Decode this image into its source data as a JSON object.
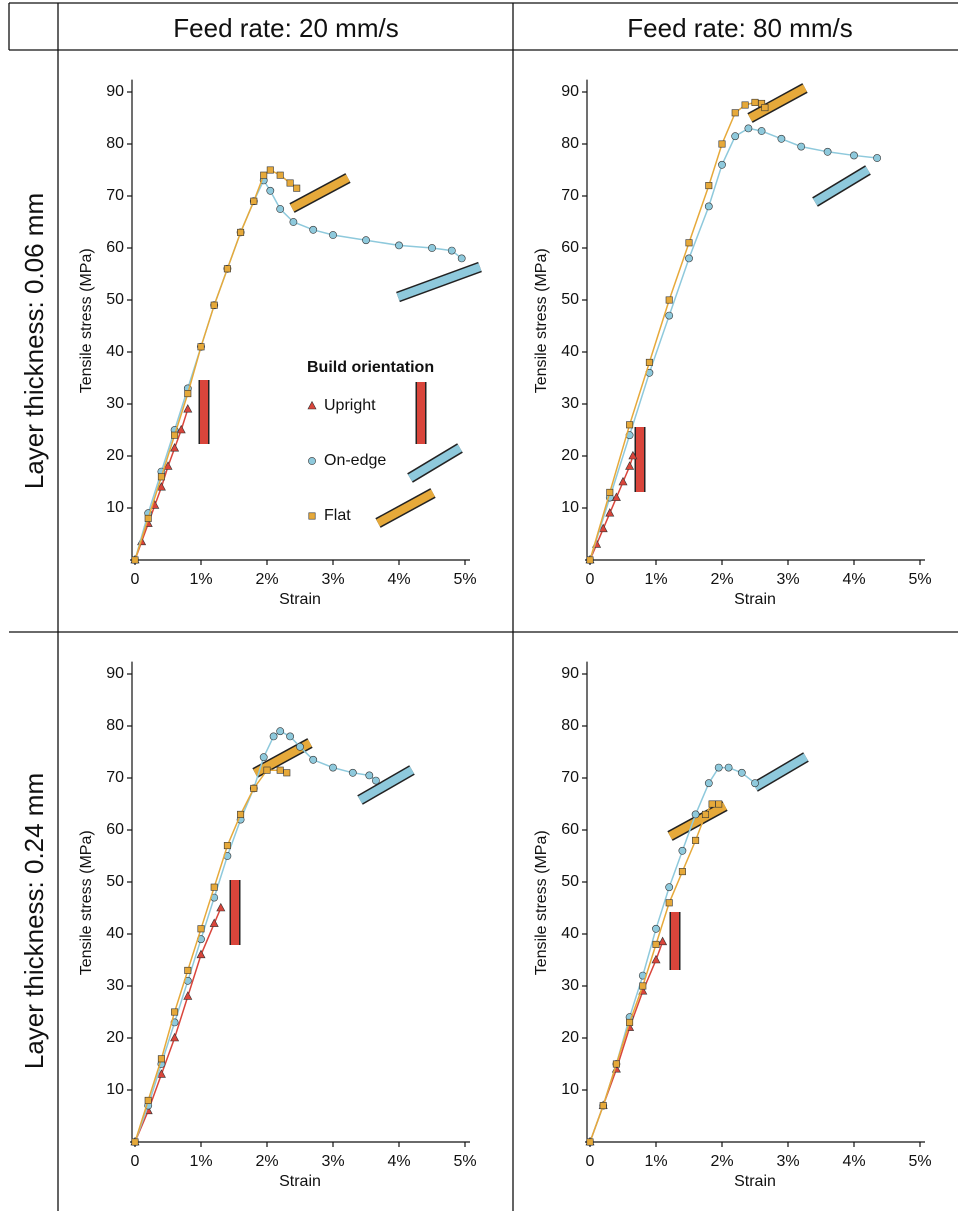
{
  "column_headers": [
    "Feed rate: 20 mm/s",
    "Feed rate: 80 mm/s"
  ],
  "row_headers": [
    "Layer thickness: 0.06 mm",
    "Layer thickness: 0.24 mm"
  ],
  "chart_data": [
    {
      "type": "scatter",
      "xlabel": "Strain",
      "ylabel": "Tensile stress (MPa)",
      "legend": "center-right",
      "legend_title": "Build orientation",
      "xlim": [
        0,
        5
      ],
      "ylim": [
        0,
        92
      ],
      "xticks": [
        0,
        {
          "value": 1,
          "label": "1%"
        },
        {
          "value": 2,
          "label": "2%"
        },
        {
          "value": 3,
          "label": "3%"
        },
        {
          "value": 4,
          "label": "4%"
        },
        {
          "value": 5,
          "label": "5%"
        }
      ],
      "yticks": [
        10,
        20,
        30,
        40,
        50,
        60,
        70,
        80,
        90
      ],
      "series": [
        {
          "name": "Upright",
          "color": "#d9453b",
          "marker": "triangle",
          "x": [
            0,
            0.1,
            0.2,
            0.3,
            0.4,
            0.5,
            0.6,
            0.7,
            0.8
          ],
          "values": [
            0,
            3.5,
            7,
            10.5,
            14,
            18,
            21.5,
            25,
            29
          ]
        },
        {
          "name": "On-edge",
          "color": "#8ec9dc",
          "marker": "circle",
          "x": [
            0,
            0.2,
            0.4,
            0.6,
            0.8,
            1.0,
            1.2,
            1.4,
            1.6,
            1.8,
            1.95,
            2.05,
            2.2,
            2.4,
            2.7,
            3.0,
            3.5,
            4.0,
            4.5,
            4.8,
            4.95
          ],
          "values": [
            0,
            9,
            17,
            25,
            33,
            41,
            49,
            56,
            63,
            69,
            73,
            71,
            67.5,
            65,
            63.5,
            62.5,
            61.5,
            60.5,
            60,
            59.5,
            58
          ]
        },
        {
          "name": "Flat",
          "color": "#e6a93a",
          "marker": "square",
          "x": [
            0,
            0.2,
            0.4,
            0.6,
            0.8,
            1.0,
            1.2,
            1.4,
            1.6,
            1.8,
            1.95,
            2.05,
            2.2,
            2.35,
            2.45
          ],
          "values": [
            0,
            8,
            16,
            24,
            32,
            41,
            49,
            56,
            63,
            69,
            74,
            75,
            74,
            72.5,
            71.5
          ]
        }
      ]
    },
    {
      "type": "scatter",
      "xlabel": "Strain",
      "ylabel": "Tensile stress (MPa)",
      "xlim": [
        0,
        5
      ],
      "ylim": [
        0,
        92
      ],
      "xticks": [
        0,
        {
          "value": 1,
          "label": "1%"
        },
        {
          "value": 2,
          "label": "2%"
        },
        {
          "value": 3,
          "label": "3%"
        },
        {
          "value": 4,
          "label": "4%"
        },
        {
          "value": 5,
          "label": "5%"
        }
      ],
      "yticks": [
        10,
        20,
        30,
        40,
        50,
        60,
        70,
        80,
        90
      ],
      "series": [
        {
          "name": "Upright",
          "color": "#d9453b",
          "marker": "triangle",
          "x": [
            0,
            0.1,
            0.2,
            0.3,
            0.4,
            0.5,
            0.6,
            0.65
          ],
          "values": [
            0,
            3,
            6,
            9,
            12,
            15,
            18,
            20
          ]
        },
        {
          "name": "On-edge",
          "color": "#8ec9dc",
          "marker": "circle",
          "x": [
            0,
            0.3,
            0.6,
            0.9,
            1.2,
            1.5,
            1.8,
            2.0,
            2.2,
            2.4,
            2.6,
            2.9,
            3.2,
            3.6,
            4.0,
            4.35
          ],
          "values": [
            0,
            12,
            24,
            36,
            47,
            58,
            68,
            76,
            81.5,
            83,
            82.5,
            81,
            79.5,
            78.5,
            77.8,
            77.3
          ]
        },
        {
          "name": "Flat",
          "color": "#e6a93a",
          "marker": "square",
          "x": [
            0,
            0.3,
            0.6,
            0.9,
            1.2,
            1.5,
            1.8,
            2.0,
            2.2,
            2.35,
            2.5,
            2.6,
            2.65
          ],
          "values": [
            0,
            13,
            26,
            38,
            50,
            61,
            72,
            80,
            86,
            87.5,
            88,
            87.8,
            87
          ]
        }
      ]
    },
    {
      "type": "scatter",
      "xlabel": "Strain",
      "ylabel": "Tensile stress (MPa)",
      "xlim": [
        0,
        5
      ],
      "ylim": [
        0,
        92
      ],
      "xticks": [
        0,
        {
          "value": 1,
          "label": "1%"
        },
        {
          "value": 2,
          "label": "2%"
        },
        {
          "value": 3,
          "label": "3%"
        },
        {
          "value": 4,
          "label": "4%"
        },
        {
          "value": 5,
          "label": "5%"
        }
      ],
      "yticks": [
        10,
        20,
        30,
        40,
        50,
        60,
        70,
        80,
        90
      ],
      "series": [
        {
          "name": "Upright",
          "color": "#d9453b",
          "marker": "triangle",
          "x": [
            0,
            0.2,
            0.4,
            0.6,
            0.8,
            1.0,
            1.2,
            1.3
          ],
          "values": [
            0,
            6,
            13,
            20,
            28,
            36,
            42,
            45
          ]
        },
        {
          "name": "On-edge",
          "color": "#8ec9dc",
          "marker": "circle",
          "x": [
            0,
            0.2,
            0.4,
            0.6,
            0.8,
            1.0,
            1.2,
            1.4,
            1.6,
            1.8,
            1.95,
            2.1,
            2.2,
            2.35,
            2.5,
            2.7,
            3.0,
            3.3,
            3.55,
            3.65
          ],
          "values": [
            0,
            7,
            15,
            23,
            31,
            39,
            47,
            55,
            62,
            68,
            74,
            78,
            79,
            78,
            76,
            73.5,
            72,
            71,
            70.5,
            69.5
          ]
        },
        {
          "name": "Flat",
          "color": "#e6a93a",
          "marker": "square",
          "x": [
            0,
            0.2,
            0.4,
            0.6,
            0.8,
            1.0,
            1.2,
            1.4,
            1.6,
            1.8,
            2.0,
            2.2,
            2.3
          ],
          "values": [
            0,
            8,
            16,
            25,
            33,
            41,
            49,
            57,
            63,
            68,
            71.5,
            71.5,
            71
          ]
        }
      ]
    },
    {
      "type": "scatter",
      "xlabel": "Strain",
      "ylabel": "Tensile stress (MPa)",
      "xlim": [
        0,
        5
      ],
      "ylim": [
        0,
        92
      ],
      "xticks": [
        0,
        {
          "value": 1,
          "label": "1%"
        },
        {
          "value": 2,
          "label": "2%"
        },
        {
          "value": 3,
          "label": "3%"
        },
        {
          "value": 4,
          "label": "4%"
        },
        {
          "value": 5,
          "label": "5%"
        }
      ],
      "yticks": [
        10,
        20,
        30,
        40,
        50,
        60,
        70,
        80,
        90
      ],
      "series": [
        {
          "name": "Upright",
          "color": "#d9453b",
          "marker": "triangle",
          "x": [
            0,
            0.2,
            0.4,
            0.6,
            0.8,
            1.0,
            1.1
          ],
          "values": [
            0,
            7,
            14,
            22,
            29,
            35,
            38.5
          ]
        },
        {
          "name": "On-edge",
          "color": "#8ec9dc",
          "marker": "circle",
          "x": [
            0,
            0.2,
            0.4,
            0.6,
            0.8,
            1.0,
            1.2,
            1.4,
            1.6,
            1.8,
            1.95,
            2.1,
            2.3,
            2.5
          ],
          "values": [
            0,
            7,
            15,
            24,
            32,
            41,
            49,
            56,
            63,
            69,
            72,
            72,
            71,
            69
          ]
        },
        {
          "name": "Flat",
          "color": "#e6a93a",
          "marker": "square",
          "x": [
            0,
            0.2,
            0.4,
            0.6,
            0.8,
            1.0,
            1.2,
            1.4,
            1.6,
            1.75,
            1.85,
            1.95
          ],
          "values": [
            0,
            7,
            15,
            23,
            30,
            38,
            46,
            52,
            58,
            63,
            65,
            65
          ]
        }
      ]
    }
  ]
}
